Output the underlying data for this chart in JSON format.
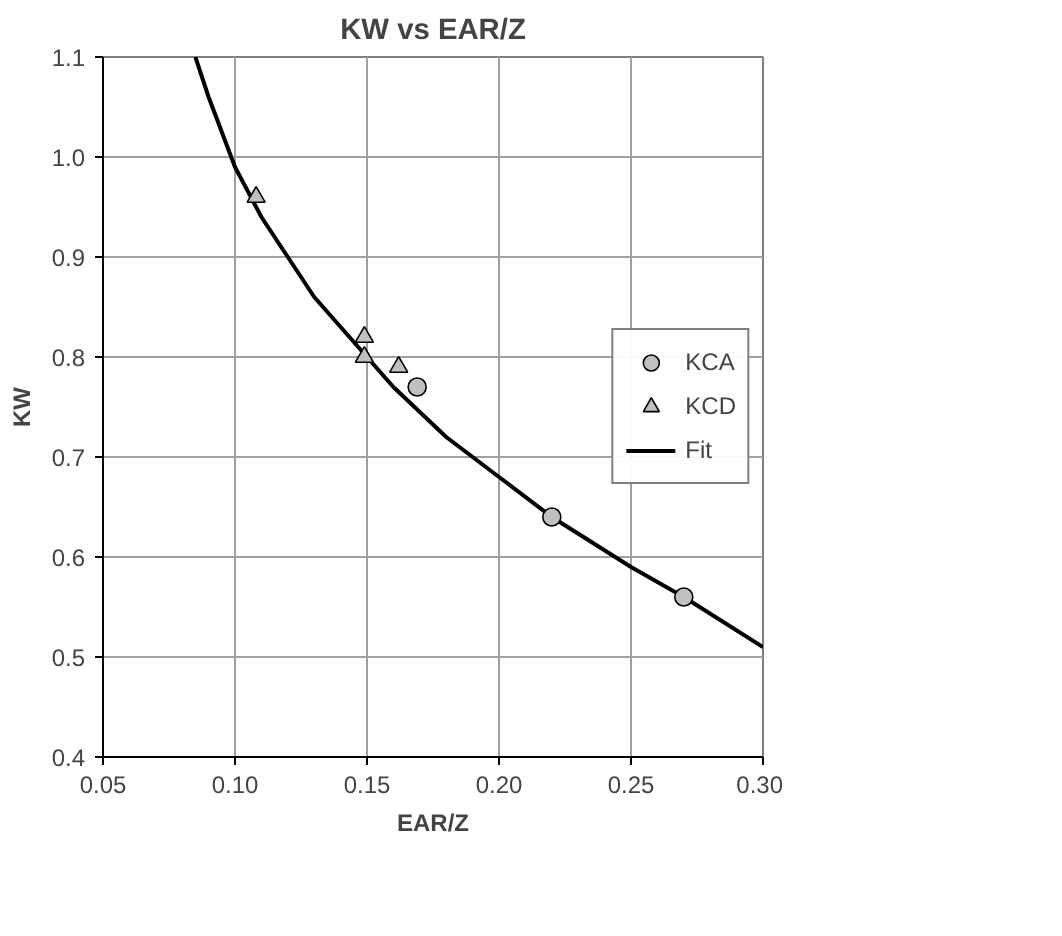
{
  "chart_data": {
    "type": "scatter",
    "title": "KW vs EAR/Z",
    "xlabel": "EAR/Z",
    "ylabel": "KW",
    "xlim": [
      0.05,
      0.3
    ],
    "ylim": [
      0.4,
      1.1
    ],
    "xticks": [
      {
        "value": 0.05,
        "label": "0.05"
      },
      {
        "value": 0.1,
        "label": "0.10"
      },
      {
        "value": 0.15,
        "label": "0.15"
      },
      {
        "value": 0.2,
        "label": "0.20"
      },
      {
        "value": 0.25,
        "label": "0.25"
      },
      {
        "value": 0.3,
        "label": "0.30"
      }
    ],
    "yticks": [
      {
        "value": 0.4,
        "label": "0.4"
      },
      {
        "value": 0.5,
        "label": "0.5"
      },
      {
        "value": 0.6,
        "label": "0.6"
      },
      {
        "value": 0.7,
        "label": "0.7"
      },
      {
        "value": 0.8,
        "label": "0.8"
      },
      {
        "value": 0.9,
        "label": "0.9"
      },
      {
        "value": 1.0,
        "label": "1.0"
      },
      {
        "value": 1.1,
        "label": "1.1"
      }
    ],
    "grid": true,
    "legend": "right",
    "series": [
      {
        "name": "KCA",
        "type": "scatter",
        "marker": "circle",
        "color": "#c0c0c0",
        "x": [
          0.169,
          0.22,
          0.27
        ],
        "values": [
          0.77,
          0.64,
          0.56
        ]
      },
      {
        "name": "KCD",
        "type": "scatter",
        "marker": "triangle",
        "color": "#c0c0c0",
        "x": [
          0.108,
          0.149,
          0.149,
          0.162
        ],
        "values": [
          0.96,
          0.82,
          0.8,
          0.79
        ]
      },
      {
        "name": "Fit",
        "type": "line",
        "marker": "none",
        "line_style": "solid",
        "color": "#000000",
        "x": [
          0.085,
          0.09,
          0.1,
          0.11,
          0.12,
          0.13,
          0.14,
          0.15,
          0.16,
          0.18,
          0.2,
          0.22,
          0.25,
          0.27,
          0.3
        ],
        "values": [
          1.1,
          1.06,
          0.99,
          0.94,
          0.9,
          0.86,
          0.83,
          0.8,
          0.77,
          0.72,
          0.68,
          0.64,
          0.59,
          0.56,
          0.51
        ]
      }
    ]
  }
}
